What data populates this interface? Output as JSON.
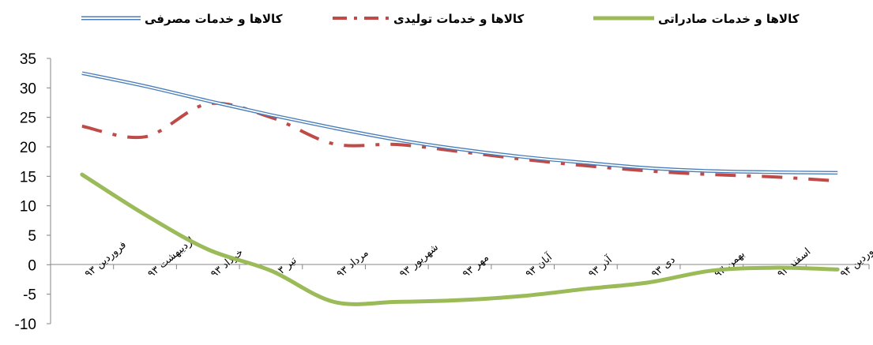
{
  "chart_data": {
    "type": "line",
    "categories": [
      "فروردین ۹۳",
      "اردیبهشت ۹۳",
      "خرداد ۹۳",
      "تیر ۹۳",
      "مرداد ۹۳",
      "شهریور ۹۳",
      "مهر ۹۳",
      "آبان ۹۳",
      "آذر ۹۳",
      "دی ۹۳",
      "بهمن ۹۳",
      "اسفند ۹۳",
      "فروردین ۹۴"
    ],
    "series": [
      {
        "name": "کالاها و خدمات مصرفی",
        "color": "#4a7ebb",
        "style": "double-line",
        "values": [
          32.5,
          30.3,
          27.8,
          25.4,
          23.2,
          21.2,
          19.6,
          18.3,
          17.3,
          16.4,
          15.9,
          15.7,
          15.6
        ]
      },
      {
        "name": "کالاها و خدمات تولیدی",
        "color": "#be4b48",
        "style": "dash-dot",
        "values": [
          23.5,
          21.7,
          27.3,
          25.0,
          20.5,
          20.4,
          19.2,
          17.9,
          16.8,
          15.9,
          15.3,
          14.9,
          14.2
        ]
      },
      {
        "name": "کالاها و خدمات صادراتی",
        "color": "#9bbb59",
        "style": "solid-thick",
        "values": [
          15.3,
          8.5,
          2.6,
          -1.0,
          -6.3,
          -6.3,
          -6.0,
          -5.3,
          -4.1,
          -3.0,
          -1.0,
          -0.5,
          -0.8
        ]
      }
    ],
    "y_ticks": [
      "35",
      "30",
      "25",
      "20",
      "15",
      "10",
      "5",
      "0",
      "-5",
      "-10"
    ],
    "ylim": [
      -10,
      35
    ],
    "grid": false,
    "legend_position": "top"
  }
}
